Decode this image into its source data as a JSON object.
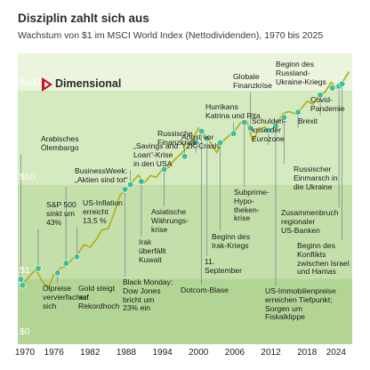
{
  "title": "Disziplin zahlt sich aus",
  "subtitle": "Wachstum von $1 im MSCI World Index (Nettodividenden), 1970 bis 2025",
  "brand": {
    "name": "Dimensional",
    "logo_icon": "dimensional-logo-icon"
  },
  "colors": {
    "band_top": "#ebf4dc",
    "band_mid": "#d6eac0",
    "band_low": "#c4dfaa",
    "band_bottom": "#b2d596",
    "line": "#b6b222",
    "marker": "#3fbf98",
    "leader": "#6e7f88",
    "logo_red": "#c8102e"
  },
  "chart_data": {
    "type": "line",
    "title": "Disziplin zahlt sich aus",
    "subtitle": "Wachstum von $1 im MSCI World Index (Nettodividenden), 1970 bis 2025",
    "xlabel": "",
    "ylabel": "",
    "xlim": [
      1970,
      2025.5
    ],
    "ylim": [
      0.2,
      250
    ],
    "y_scale": "log",
    "x_ticks": [
      "1970",
      "1976",
      "1982",
      "1988",
      "1994",
      "2000",
      "2006",
      "2012",
      "2018",
      "2024"
    ],
    "y_ticks": [
      {
        "label": "$100",
        "value": 100
      },
      {
        "label": "$10",
        "value": 10
      },
      {
        "label": "$1",
        "value": 1
      },
      {
        "label": "$0",
        "value": 0.2
      }
    ],
    "series": [
      {
        "x": [
          1970,
          1971,
          1972,
          1973,
          1974,
          1975,
          1976,
          1977,
          1978,
          1979,
          1980,
          1981,
          1982,
          1983,
          1984,
          1985,
          1986,
          1987,
          1988,
          1989,
          1990,
          1991,
          1992,
          1993,
          1994,
          1995,
          1996,
          1997,
          1998,
          1999,
          2000,
          2001,
          2002,
          2003,
          2004,
          2005,
          2006,
          2007,
          2008,
          2009,
          2010,
          2011,
          2012,
          2013,
          2014,
          2015,
          2016,
          2017,
          2018,
          2019,
          2020,
          2021,
          2022,
          2023,
          2024,
          2025
        ],
        "values": [
          1.0,
          0.9,
          1.07,
          1.25,
          0.95,
          0.78,
          1.1,
          1.28,
          1.35,
          1.6,
          1.85,
          2.3,
          2.15,
          2.6,
          3.3,
          3.4,
          5.0,
          7.8,
          8.9,
          10.7,
          12.6,
          10.5,
          12.5,
          12.0,
          14.6,
          15.2,
          18.4,
          21.0,
          24.5,
          30.5,
          40.0,
          34.0,
          28.0,
          22.0,
          29.0,
          33.0,
          37.5,
          46.0,
          48.0,
          29.0,
          39.0,
          41.0,
          38.0,
          45.0,
          57.0,
          60.0,
          57.0,
          64.0,
          77.0,
          72.0,
          90.0,
          97.0,
          123.0,
          105.0,
          127.0,
          160.0
        ]
      }
    ],
    "events": [
      {
        "x": 1970.5,
        "y": 0.98,
        "label": "Arabisches\nÖlembargo"
      },
      {
        "x": 1970.8,
        "y": 0.85,
        "label": "Ölpreise\nvervierfachen\nsich"
      },
      {
        "x": 1973.4,
        "y": 1.28,
        "label": "S&P 500\nsinkt um\n43%"
      },
      {
        "x": 1976.6,
        "y": 1.15,
        "label": "Gold steigt\nauf\nRekordhoch"
      },
      {
        "x": 1978.0,
        "y": 1.45,
        "label": "BusinessWeek:\n„Aktien sind tot“"
      },
      {
        "x": 1979.8,
        "y": 1.7,
        "label": "US-Inflation\nerreicht\n13,5 %"
      },
      {
        "x": 1987.8,
        "y": 8.9,
        "label": "Black Monday:\nDow Jones\nbricht um\n23% ein"
      },
      {
        "x": 1988.7,
        "y": 10.0,
        "label": "„Savings and\nLoan“-Krise\nin den USA"
      },
      {
        "x": 1990.5,
        "y": 10.8,
        "label": "Irak\nüberfällt\nKuwait"
      },
      {
        "x": 1994.3,
        "y": 14.5,
        "label": "Asiatische\nWährungs-\nkrise"
      },
      {
        "x": 1997.7,
        "y": 20.0,
        "label": "Russische\nFinanzkrise"
      },
      {
        "x": 1999.6,
        "y": 28.0,
        "label": "Angst vor\nY2K-Crash"
      },
      {
        "x": 2000.5,
        "y": 37.0,
        "label": "Dotcom-Blase"
      },
      {
        "x": 2001.4,
        "y": 31.0,
        "label": "11.\nSeptember"
      },
      {
        "x": 2003.6,
        "y": 28.0,
        "label": "Beginn des\nIrak-Kriegs"
      },
      {
        "x": 2005.8,
        "y": 35.0,
        "label": "Hurrikans\nKatrina und Rita"
      },
      {
        "x": 2007.6,
        "y": 46.0,
        "label": "Subprime-\nHypo-\ntheken-\nkrise"
      },
      {
        "x": 2008.6,
        "y": 40.0,
        "label": "Globale\nFinanzkrise"
      },
      {
        "x": 2011.6,
        "y": 38.0,
        "label": "Schulden-\nkrise der\nEurozone"
      },
      {
        "x": 2012.8,
        "y": 42.0,
        "label": "US-Immobilienpreise\nerreichen Tiefpunkt;\nSorgen um\nFiskalklippe"
      },
      {
        "x": 2014.2,
        "y": 52.0,
        "label": "Russischer\nEinmarsch in\ndie Ukraine"
      },
      {
        "x": 2016.5,
        "y": 59.0,
        "label": "Brexit"
      },
      {
        "x": 2020.2,
        "y": 90.0,
        "label": "Covid-\nPandemie"
      },
      {
        "x": 2022.2,
        "y": 107.0,
        "label": "Beginn des\nRussland-\nUkraine-Kriegs"
      },
      {
        "x": 2023.3,
        "y": 112.0,
        "label": "Zusammenbruch\nregionaler\nUS-Banken"
      },
      {
        "x": 2023.8,
        "y": 118.0,
        "label": "Beginn des\nKonflikts\nzwischen Israel\nund Hamas"
      }
    ]
  }
}
